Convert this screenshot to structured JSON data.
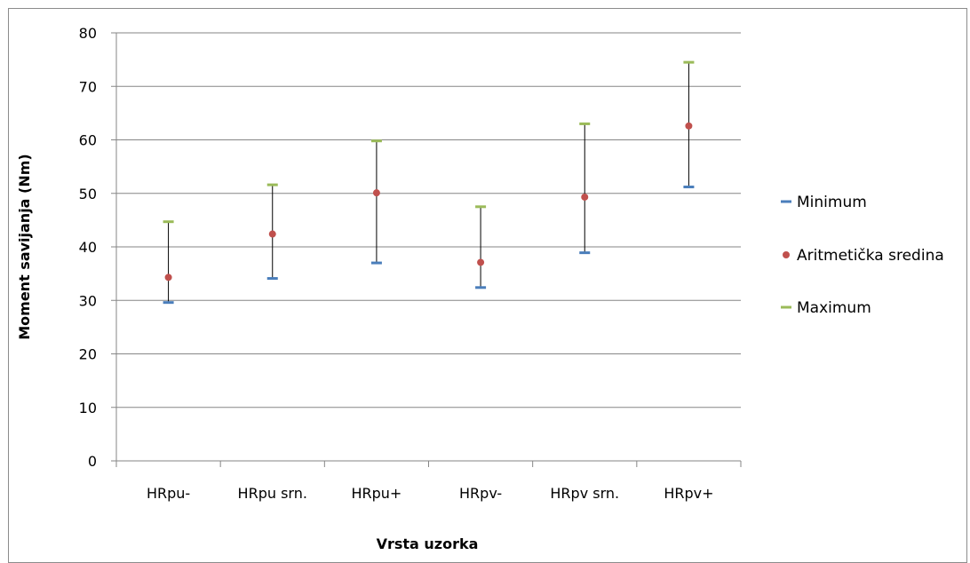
{
  "chart_data": {
    "type": "scatter",
    "title": "",
    "xlabel": "Vrsta uzorka",
    "ylabel": "Moment savijanja (Nm)",
    "ylim": [
      0,
      80
    ],
    "yticks": [
      0,
      10,
      20,
      30,
      40,
      50,
      60,
      70,
      80
    ],
    "grid": true,
    "legend_position": "right",
    "categories": [
      "HRpu-",
      "HRpu srn.",
      "HRpu+",
      "HRpv-",
      "HRpv srn.",
      "HRpv+"
    ],
    "series": [
      {
        "name": "Minimum",
        "marker": "dash",
        "color": "#4a7ebb",
        "values": [
          29.6,
          34.1,
          37.0,
          32.4,
          38.9,
          51.2
        ]
      },
      {
        "name": "Aritmetička sredina",
        "marker": "circle",
        "color": "#c0504d",
        "values": [
          34.3,
          42.4,
          50.1,
          37.1,
          49.3,
          62.6
        ]
      },
      {
        "name": "Maximum",
        "marker": "dash",
        "color": "#9bbb59",
        "values": [
          44.7,
          51.6,
          59.8,
          47.5,
          63.0,
          74.5
        ]
      }
    ],
    "error_bars": {
      "from_series": "Minimum",
      "to_series": "Maximum",
      "color": "#000000"
    }
  }
}
